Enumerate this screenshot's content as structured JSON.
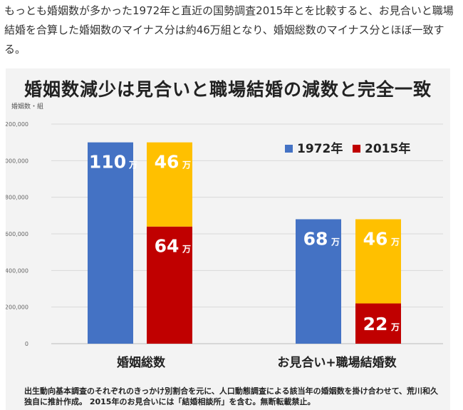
{
  "intro_text": "もっとも婚姻数が多かった1972年と直近の国勢調査2015年とを比較すると、お見合いと職場結婚を合算した婚姻数のマイナス分は約46万組となり、婚姻総数のマイナス分とほぼ一致する。",
  "source_note": "出生動向基本調査のそれぞれのきっかけ別割合を元に、人口動態調査による該当年の婚姻数を掛け合わせて、荒川和久独自に推計作成。 2015年のお見合いには「結婚相談所」を含む。無断転載禁止。",
  "chart_data": {
    "type": "bar",
    "title": "婚姻数減少は見合いと職場結婚の減数と完全一致",
    "ylabel": "婚姻数・組",
    "ylim": [
      0,
      1200000
    ],
    "yticks": [
      0,
      200000,
      400000,
      600000,
      800000,
      1000000,
      1200000
    ],
    "ytick_labels": [
      "0",
      "200,000",
      "400,000",
      "600,000",
      "800,000",
      "1,000,000",
      "1,200,000"
    ],
    "categories": [
      "婚姻総数",
      "お見合い+職場結婚数"
    ],
    "legend": [
      {
        "name": "1972年",
        "color": "#4472c4"
      },
      {
        "name": "2015年",
        "color": "#c00000"
      }
    ],
    "legend_position": "top-right",
    "unit_suffix": "万",
    "bars": [
      {
        "category_index": 0,
        "series": "1972年",
        "segments": [
          {
            "value": 1100000,
            "label": "110",
            "color": "#4472c4"
          }
        ]
      },
      {
        "category_index": 0,
        "series": "2015年",
        "segments": [
          {
            "value": 640000,
            "label": "64",
            "color": "#c00000"
          },
          {
            "value": 460000,
            "label": "46",
            "color": "#ffc000"
          }
        ]
      },
      {
        "category_index": 1,
        "series": "1972年",
        "segments": [
          {
            "value": 680000,
            "label": "68",
            "color": "#4472c4"
          }
        ]
      },
      {
        "category_index": 1,
        "series": "2015年",
        "segments": [
          {
            "value": 220000,
            "label": "22",
            "color": "#c00000"
          },
          {
            "value": 460000,
            "label": "46",
            "color": "#ffc000"
          }
        ]
      }
    ]
  }
}
